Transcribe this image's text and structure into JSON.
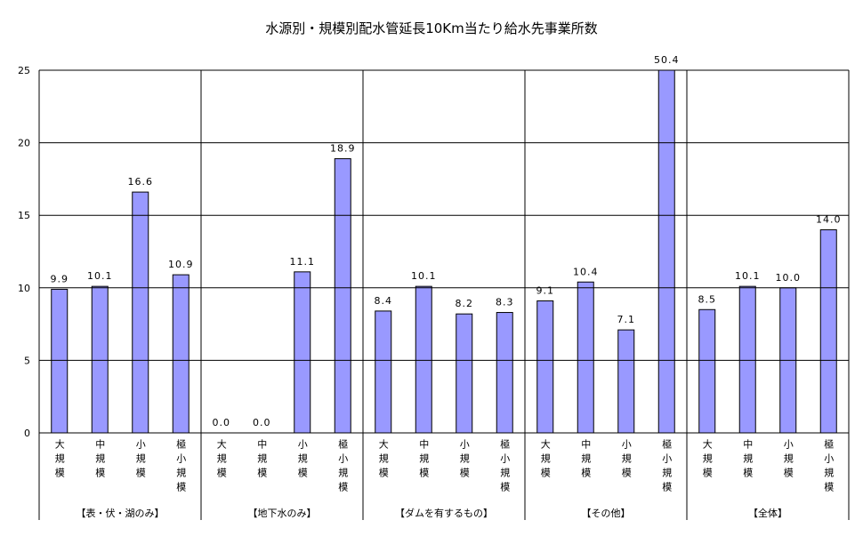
{
  "chart_data": {
    "type": "bar",
    "title": "水源別・規模別配水管延長10Km当たり給水先事業所数",
    "groups": [
      "【表・伏・湖のみ】",
      "【地下水のみ】",
      "【ダムを有するもの】",
      "【その他】",
      "【全体】"
    ],
    "categories": [
      "大規模",
      "中規模",
      "小規模",
      "極小規模",
      "大規模",
      "中規模",
      "小規模",
      "極小規模",
      "大規模",
      "中規模",
      "小規模",
      "極小規模",
      "大規模",
      "中規模",
      "小規模",
      "極小規模",
      "大規模",
      "中規模",
      "小規模",
      "極小規模"
    ],
    "values": [
      9.9,
      10.1,
      16.6,
      10.9,
      0,
      0,
      11.1,
      18.9,
      8.4,
      10.1,
      8.2,
      8.3,
      9.1,
      10.4,
      7.1,
      50.4,
      8.5,
      10.1,
      10.0,
      14.0
    ],
    "value_labels": [
      "9.9",
      "10.1",
      "16.6",
      "10.9",
      "0.0",
      "0.0",
      "11.1",
      "18.9",
      "8.4",
      "10.1",
      "8.2",
      "8.3",
      "9.1",
      "10.4",
      "7.1",
      "50.4",
      "8.5",
      "10.1",
      "10.0",
      "14.0"
    ],
    "color": "#9999ff",
    "ylim": [
      0,
      25
    ],
    "yticks": [
      0,
      5,
      10,
      15,
      20,
      25
    ],
    "grid": true
  }
}
